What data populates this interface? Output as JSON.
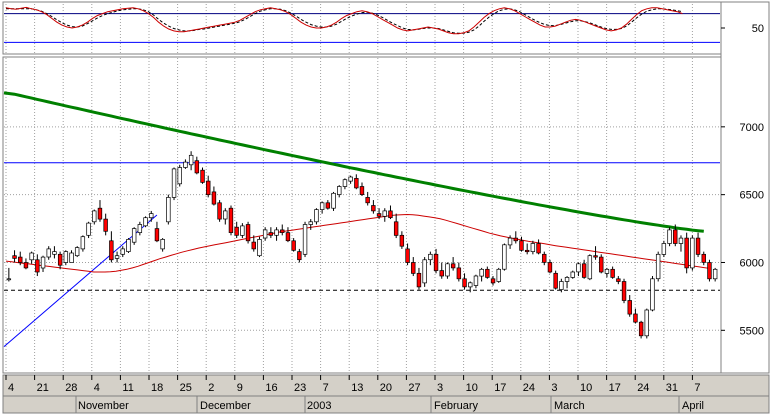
{
  "chart_data": [
    {
      "type": "line",
      "panel": "oscillator",
      "series": [
        {
          "values": [
            92,
            90,
            89,
            91,
            93,
            90,
            88,
            84,
            78,
            70,
            62,
            56,
            52,
            50,
            52,
            56,
            62,
            70,
            76,
            80,
            84,
            86,
            88,
            90,
            91,
            92,
            90,
            86,
            80,
            72,
            62,
            54,
            48,
            44,
            42,
            42,
            44,
            46,
            48,
            50,
            52,
            54,
            56,
            58,
            60,
            62,
            66,
            72,
            78,
            84,
            88,
            90,
            92,
            90,
            88,
            84,
            78,
            70,
            62,
            56,
            52,
            50,
            50,
            52,
            56,
            62,
            70,
            76,
            80,
            84,
            86,
            84,
            80,
            74,
            68,
            62,
            56,
            50,
            46,
            44,
            46,
            48,
            50,
            52,
            50,
            48,
            44,
            40,
            38,
            38,
            40,
            44,
            52,
            62,
            72,
            80,
            86,
            90,
            92,
            90,
            86,
            80,
            74,
            68,
            62,
            56,
            52,
            52,
            54,
            58,
            62,
            66,
            68,
            66,
            62,
            58,
            54,
            50,
            46,
            44,
            46,
            50,
            58,
            68,
            78,
            86,
            90,
            92,
            92,
            90,
            88,
            86,
            84,
            80
          ]
        },
        {
          "values": [
            90,
            90,
            90,
            90,
            90,
            90,
            88,
            85,
            80,
            74,
            67,
            61,
            56,
            53,
            52,
            54,
            59,
            65,
            71,
            76,
            80,
            83,
            86,
            88,
            89,
            90,
            90,
            88,
            84,
            77,
            68,
            60,
            54,
            49,
            46,
            44,
            44,
            45,
            47,
            48,
            50,
            52,
            54,
            56,
            58,
            60,
            63,
            68,
            74,
            80,
            85,
            88,
            90,
            90,
            89,
            86,
            81,
            75,
            68,
            62,
            57,
            54,
            52,
            52,
            54,
            58,
            64,
            70,
            75,
            79,
            82,
            83,
            81,
            77,
            72,
            66,
            60,
            55,
            50,
            47,
            46,
            47,
            49,
            50,
            50,
            49,
            46,
            43,
            40,
            39,
            39,
            41,
            46,
            54,
            64,
            73,
            80,
            86,
            89,
            90,
            88,
            84,
            78,
            72,
            66,
            61,
            57,
            55,
            55,
            57,
            60,
            63,
            65,
            65,
            63,
            60,
            56,
            52,
            49,
            47,
            47,
            49,
            54,
            62,
            71,
            79,
            85,
            88,
            90,
            90,
            89,
            88,
            86,
            84
          ]
        }
      ],
      "ylim": [
        0,
        100
      ],
      "hlines": [
        {
          "value": 80,
          "color": "#000080"
        },
        {
          "value": 20,
          "color": "#0000ff"
        }
      ],
      "y_tick_labels": [
        "50"
      ],
      "y_ticks": [
        50
      ],
      "grid": true
    },
    {
      "type": "candlestick",
      "panel": "price",
      "candles": [
        [
          5880,
          5960,
          5860,
          5880
        ],
        [
          6050,
          6090,
          6000,
          6030
        ],
        [
          6040,
          6080,
          5980,
          6000
        ],
        [
          6000,
          6030,
          5950,
          5960
        ],
        [
          6020,
          6080,
          5990,
          6070
        ],
        [
          6020,
          6060,
          5900,
          5930
        ],
        [
          5960,
          6050,
          5930,
          6040
        ],
        [
          6040,
          6120,
          6020,
          6100
        ],
        [
          6060,
          6120,
          6030,
          6080
        ],
        [
          6060,
          6080,
          5950,
          5980
        ],
        [
          6000,
          6090,
          5980,
          6080
        ],
        [
          6000,
          6090,
          6000,
          6070
        ],
        [
          6050,
          6120,
          6040,
          6110
        ],
        [
          6100,
          6200,
          6080,
          6190
        ],
        [
          6200,
          6300,
          6180,
          6290
        ],
        [
          6300,
          6390,
          6280,
          6380
        ],
        [
          6400,
          6460,
          6300,
          6320
        ],
        [
          6320,
          6360,
          6200,
          6230
        ],
        [
          6160,
          6230,
          6000,
          6020
        ],
        [
          6030,
          6080,
          6000,
          6050
        ],
        [
          6060,
          6120,
          6040,
          6100
        ],
        [
          6080,
          6180,
          6070,
          6170
        ],
        [
          6150,
          6260,
          6130,
          6250
        ],
        [
          6220,
          6300,
          6200,
          6280
        ],
        [
          6270,
          6340,
          6260,
          6330
        ],
        [
          6330,
          6380,
          6300,
          6360
        ],
        [
          6250,
          6300,
          6150,
          6160
        ],
        [
          6100,
          6180,
          6080,
          6170
        ],
        [
          6300,
          6500,
          6280,
          6480
        ],
        [
          6480,
          6700,
          6460,
          6690
        ],
        [
          6580,
          6720,
          6560,
          6700
        ],
        [
          6700,
          6760,
          6690,
          6740
        ],
        [
          6720,
          6820,
          6680,
          6790
        ],
        [
          6750,
          6780,
          6650,
          6660
        ],
        [
          6680,
          6700,
          6580,
          6590
        ],
        [
          6600,
          6640,
          6480,
          6500
        ],
        [
          6520,
          6560,
          6420,
          6430
        ],
        [
          6440,
          6460,
          6300,
          6320
        ],
        [
          6320,
          6400,
          6280,
          6380
        ],
        [
          6400,
          6420,
          6200,
          6220
        ],
        [
          6260,
          6300,
          6180,
          6200
        ],
        [
          6200,
          6290,
          6180,
          6270
        ],
        [
          6280,
          6300,
          6140,
          6160
        ],
        [
          6150,
          6200,
          6080,
          6100
        ],
        [
          6050,
          6190,
          6040,
          6170
        ],
        [
          6180,
          6260,
          6160,
          6240
        ],
        [
          6220,
          6260,
          6180,
          6200
        ],
        [
          6200,
          6260,
          6160,
          6240
        ],
        [
          6240,
          6280,
          6200,
          6220
        ],
        [
          6220,
          6260,
          6150,
          6160
        ],
        [
          6160,
          6180,
          6080,
          6090
        ],
        [
          6080,
          6100,
          6000,
          6020
        ],
        [
          6060,
          6300,
          6040,
          6280
        ],
        [
          6280,
          6320,
          6240,
          6300
        ],
        [
          6300,
          6400,
          6280,
          6390
        ],
        [
          6390,
          6450,
          6360,
          6440
        ],
        [
          6440,
          6460,
          6390,
          6400
        ],
        [
          6400,
          6520,
          6380,
          6510
        ],
        [
          6500,
          6570,
          6480,
          6560
        ],
        [
          6560,
          6620,
          6540,
          6610
        ],
        [
          6600,
          6640,
          6580,
          6630
        ],
        [
          6620,
          6650,
          6540,
          6550
        ],
        [
          6560,
          6590,
          6490,
          6500
        ],
        [
          6480,
          6520,
          6420,
          6440
        ],
        [
          6420,
          6460,
          6360,
          6380
        ],
        [
          6360,
          6400,
          6320,
          6340
        ],
        [
          6340,
          6400,
          6300,
          6380
        ],
        [
          6380,
          6420,
          6320,
          6330
        ],
        [
          6300,
          6360,
          6180,
          6200
        ],
        [
          6200,
          6230,
          6100,
          6120
        ],
        [
          6100,
          6140,
          5980,
          6000
        ],
        [
          6000,
          6040,
          5900,
          5920
        ],
        [
          5920,
          5960,
          5800,
          5820
        ],
        [
          5850,
          6040,
          5820,
          6020
        ],
        [
          6020,
          6080,
          5980,
          6060
        ],
        [
          6060,
          6100,
          5920,
          5940
        ],
        [
          5940,
          6000,
          5880,
          5900
        ],
        [
          5900,
          6000,
          5880,
          5990
        ],
        [
          5990,
          6040,
          5940,
          5960
        ],
        [
          5960,
          6000,
          5860,
          5880
        ],
        [
          5880,
          5920,
          5800,
          5820
        ],
        [
          5820,
          5860,
          5780,
          5850
        ],
        [
          5830,
          5910,
          5810,
          5900
        ],
        [
          5900,
          5960,
          5860,
          5950
        ],
        [
          5950,
          5970,
          5880,
          5890
        ],
        [
          5880,
          5900,
          5830,
          5850
        ],
        [
          5860,
          5960,
          5850,
          5950
        ],
        [
          5950,
          6140,
          5940,
          6130
        ],
        [
          6130,
          6200,
          6100,
          6180
        ],
        [
          6180,
          6230,
          6140,
          6160
        ],
        [
          6160,
          6190,
          6080,
          6090
        ],
        [
          6090,
          6140,
          6060,
          6080
        ],
        [
          6080,
          6160,
          6060,
          6140
        ],
        [
          6140,
          6170,
          6060,
          6070
        ],
        [
          6060,
          6080,
          5980,
          6000
        ],
        [
          6000,
          6020,
          5920,
          5930
        ],
        [
          5920,
          5940,
          5800,
          5810
        ],
        [
          5800,
          5880,
          5780,
          5860
        ],
        [
          5860,
          5900,
          5810,
          5890
        ],
        [
          5890,
          5940,
          5880,
          5930
        ],
        [
          5930,
          6000,
          5900,
          5990
        ],
        [
          5990,
          6020,
          5880,
          5890
        ],
        [
          5880,
          6060,
          5870,
          6050
        ],
        [
          6050,
          6120,
          6020,
          6040
        ],
        [
          6040,
          6060,
          5920,
          5930
        ],
        [
          5920,
          5960,
          5890,
          5950
        ],
        [
          5950,
          5970,
          5880,
          5890
        ],
        [
          5880,
          5900,
          5840,
          5860
        ],
        [
          5860,
          5880,
          5700,
          5720
        ],
        [
          5720,
          5760,
          5600,
          5620
        ],
        [
          5620,
          5660,
          5550,
          5560
        ],
        [
          5560,
          5570,
          5440,
          5460
        ],
        [
          5460,
          5660,
          5440,
          5650
        ],
        [
          5650,
          5900,
          5640,
          5880
        ],
        [
          5880,
          6080,
          5860,
          6060
        ],
        [
          6060,
          6160,
          6040,
          6140
        ],
        [
          6140,
          6260,
          6120,
          6240
        ],
        [
          6240,
          6280,
          6120,
          6140
        ],
        [
          6140,
          6200,
          6080,
          6180
        ],
        [
          6180,
          6220,
          5920,
          5960
        ],
        [
          5960,
          6200,
          5940,
          6180
        ],
        [
          6180,
          6220,
          6040,
          6060
        ],
        [
          6060,
          6080,
          5980,
          6000
        ],
        [
          6000,
          6020,
          5860,
          5880
        ],
        [
          5880,
          5960,
          5860,
          5950
        ]
      ],
      "ma_short": [
        6010,
        6005,
        6000,
        5995,
        5990,
        5985,
        5980,
        5975,
        5970,
        5965,
        5960,
        5955,
        5950,
        5945,
        5940,
        5935,
        5930,
        5930,
        5930,
        5932,
        5936,
        5942,
        5950,
        5960,
        5972,
        5986,
        6000,
        6014,
        6028,
        6040,
        6052,
        6064,
        6076,
        6086,
        6096,
        6106,
        6114,
        6122,
        6130,
        6138,
        6146,
        6154,
        6162,
        6170,
        6178,
        6186,
        6194,
        6202,
        6210,
        6218,
        6226,
        6232,
        6238,
        6244,
        6250,
        6256,
        6262,
        6268,
        6274,
        6280,
        6286,
        6292,
        6298,
        6304,
        6310,
        6316,
        6322,
        6328,
        6334,
        6340,
        6346,
        6350,
        6352,
        6354,
        6352,
        6348,
        6342,
        6336,
        6330,
        6322,
        6312,
        6300,
        6288,
        6276,
        6264,
        6252,
        6240,
        6228,
        6216,
        6206,
        6196,
        6188,
        6180,
        6172,
        6164,
        6156,
        6150,
        6144,
        6138,
        6130,
        6124,
        6118,
        6112,
        6106,
        6100,
        6094,
        6088,
        6082,
        6076,
        6070,
        6064,
        6058,
        6052,
        6046,
        6040,
        6034,
        6028,
        6022,
        6016,
        6010,
        6004,
        5998,
        5992,
        5986,
        5980,
        5974,
        5968,
        5962,
        5956
      ],
      "ma_long_start": 7250,
      "ma_long_end": 6230,
      "hlines": [
        {
          "value": 6735,
          "color": "#0000ff",
          "style": "solid"
        },
        {
          "value": 5795,
          "color": "#000000",
          "style": "dashed"
        }
      ],
      "trendline": {
        "from": [
          0,
          5380
        ],
        "to": [
          26,
          6350
        ],
        "color": "#0000ff"
      },
      "y_tick_labels": [
        "7000",
        "6500",
        "6000",
        "5500"
      ],
      "y_ticks": [
        7000,
        6500,
        6000,
        5500
      ],
      "ylim": [
        5200,
        7500
      ],
      "x_tick_labels": [
        "4",
        "21",
        "28",
        "4",
        "11",
        "18",
        "25",
        "2",
        "9",
        "16",
        "23",
        "7",
        "13",
        "20",
        "27",
        "3",
        "10",
        "17",
        "24",
        "3",
        "10",
        "17",
        "24",
        "31",
        "7"
      ],
      "month_labels": [
        "November",
        "December",
        "2003",
        "February",
        "March",
        "April"
      ],
      "colors": {
        "up": "#ffffff",
        "down": "#ff0000",
        "ma_long": "#008000",
        "ma_short": "#cc0000"
      },
      "grid": true
    }
  ]
}
